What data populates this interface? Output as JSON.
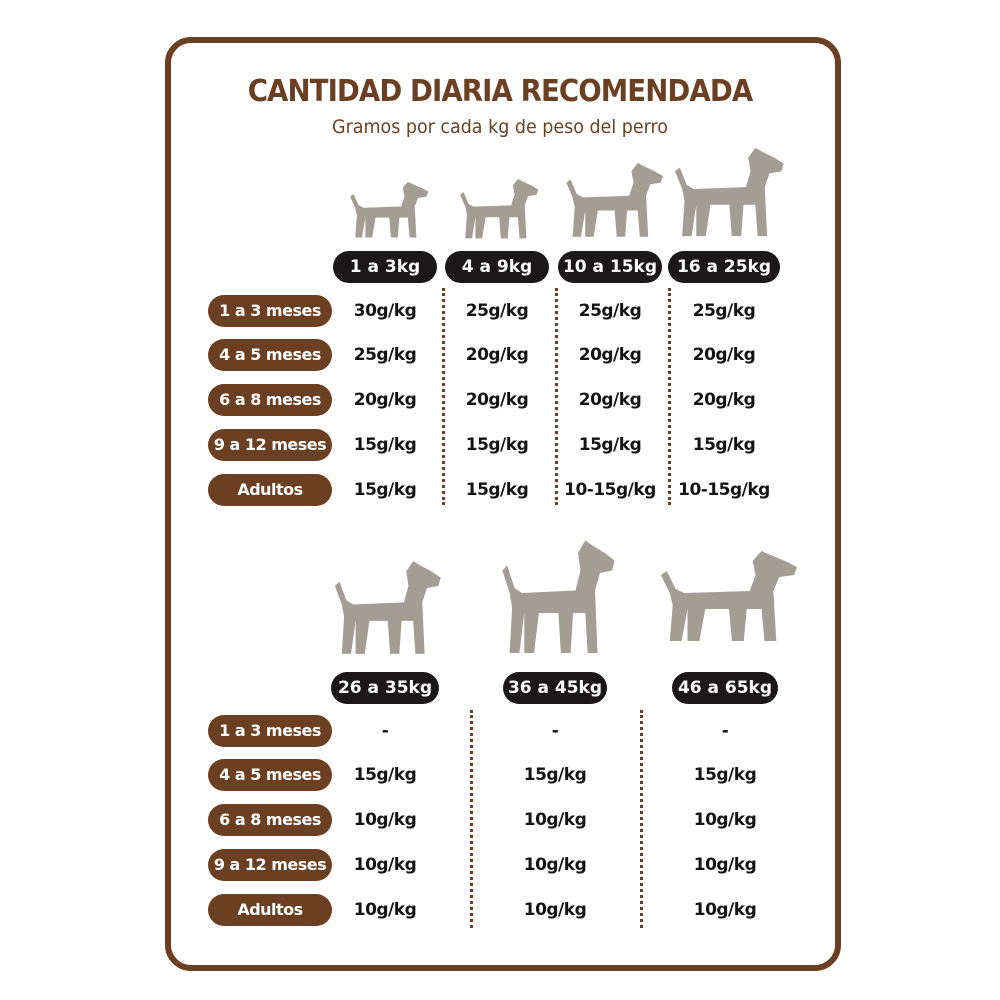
{
  "title": "CANTIDAD DIARIA RECOMENDADA",
  "subtitle": "Gramos por cada kg de peso del perro",
  "colors": {
    "brown": "#6b3f22",
    "dark_pill": "#1a1818",
    "dog_silhouette": "#a39e93"
  },
  "tables": [
    {
      "weights": [
        "1 a 3kg",
        "4 a 9kg",
        "10 a 15kg",
        "16 a 25kg"
      ],
      "dog_icons": [
        "yorkshire-dog-icon",
        "scottish-terrier-dog-icon",
        "schnauzer-dog-icon",
        "beagle-dog-icon"
      ],
      "rows": [
        {
          "label": "1 a 3 meses",
          "values": [
            "30g/kg",
            "25g/kg",
            "25g/kg",
            "25g/kg"
          ]
        },
        {
          "label": "4 a 5 meses",
          "values": [
            "25g/kg",
            "20g/kg",
            "20g/kg",
            "20g/kg"
          ]
        },
        {
          "label": "6 a 8 meses",
          "values": [
            "20g/kg",
            "20g/kg",
            "20g/kg",
            "20g/kg"
          ]
        },
        {
          "label": "9 a 12 meses",
          "values": [
            "15g/kg",
            "15g/kg",
            "15g/kg",
            "15g/kg"
          ]
        },
        {
          "label": "Adultos",
          "values": [
            "15g/kg",
            "15g/kg",
            "10-15g/kg",
            "10-15g/kg"
          ]
        }
      ]
    },
    {
      "weights": [
        "26 a 35kg",
        "36 a 45kg",
        "46 a 65kg"
      ],
      "dog_icons": [
        "boxer-dog-icon",
        "great-dane-dog-icon",
        "saint-bernard-dog-icon"
      ],
      "rows": [
        {
          "label": "1 a 3 meses",
          "values": [
            "-",
            "-",
            "-"
          ]
        },
        {
          "label": "4 a 5 meses",
          "values": [
            "15g/kg",
            "15g/kg",
            "15g/kg"
          ]
        },
        {
          "label": "6 a 8 meses",
          "values": [
            "10g/kg",
            "10g/kg",
            "10g/kg"
          ]
        },
        {
          "label": "9 a 12 meses",
          "values": [
            "10g/kg",
            "10g/kg",
            "10g/kg"
          ]
        },
        {
          "label": "Adultos",
          "values": [
            "10g/kg",
            "10g/kg",
            "10g/kg"
          ]
        }
      ]
    }
  ]
}
